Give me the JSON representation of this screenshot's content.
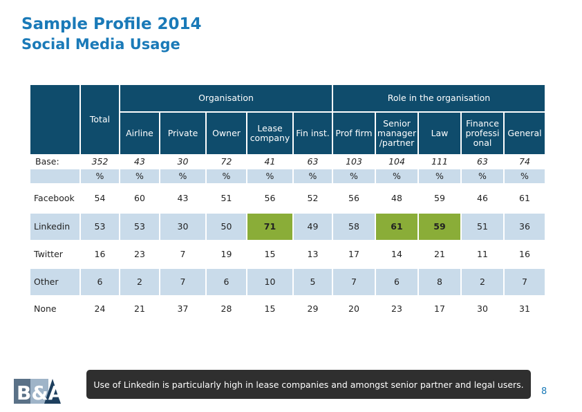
{
  "header": {
    "title": "Sample Profile 2014",
    "subtitle": "Social Media Usage"
  },
  "table": {
    "group_organisation": "Organisation",
    "group_role": "Role in the organisation",
    "total_label": "Total",
    "columns": [
      "Airline",
      "Private",
      "Owner",
      "Lease company",
      "Fin inst.",
      "Prof firm",
      "Senior manager /partner",
      "Law",
      "Finance professi onal",
      "General"
    ],
    "base": {
      "label": "Base:",
      "values": [
        "352",
        "43",
        "30",
        "72",
        "41",
        "63",
        "103",
        "104",
        "111",
        "63",
        "74"
      ]
    },
    "percent_row": [
      "%",
      "%",
      "%",
      "%",
      "%",
      "%",
      "%",
      "%",
      "%",
      "%",
      "%"
    ],
    "rows": [
      {
        "label": "Facebook",
        "values": [
          "54",
          "60",
          "43",
          "51",
          "56",
          "52",
          "56",
          "48",
          "59",
          "46",
          "61"
        ],
        "highlight": []
      },
      {
        "label": "Linkedin",
        "values": [
          "53",
          "53",
          "30",
          "50",
          "71",
          "49",
          "58",
          "61",
          "59",
          "51",
          "36"
        ],
        "highlight": [
          4,
          7,
          8
        ]
      },
      {
        "label": "Twitter",
        "values": [
          "16",
          "23",
          "7",
          "19",
          "15",
          "13",
          "17",
          "14",
          "21",
          "11",
          "16"
        ],
        "highlight": []
      },
      {
        "label": "Other",
        "values": [
          "6",
          "2",
          "7",
          "6",
          "10",
          "5",
          "7",
          "6",
          "8",
          "2",
          "7"
        ],
        "highlight": []
      },
      {
        "label": "None",
        "values": [
          "24",
          "21",
          "37",
          "28",
          "15",
          "29",
          "20",
          "23",
          "17",
          "30",
          "31"
        ],
        "highlight": []
      }
    ]
  },
  "callout": "Use of Linkedin is particularly high in lease companies and amongst senior partner and legal users.",
  "page_number": "8",
  "logo_text": "B&A",
  "colors": {
    "header_bg": "#0f4c6c",
    "row_light": "#c9dbea",
    "highlight": "#8aad38",
    "title": "#1a7ab8",
    "callout_bg": "#2f2f2f"
  }
}
